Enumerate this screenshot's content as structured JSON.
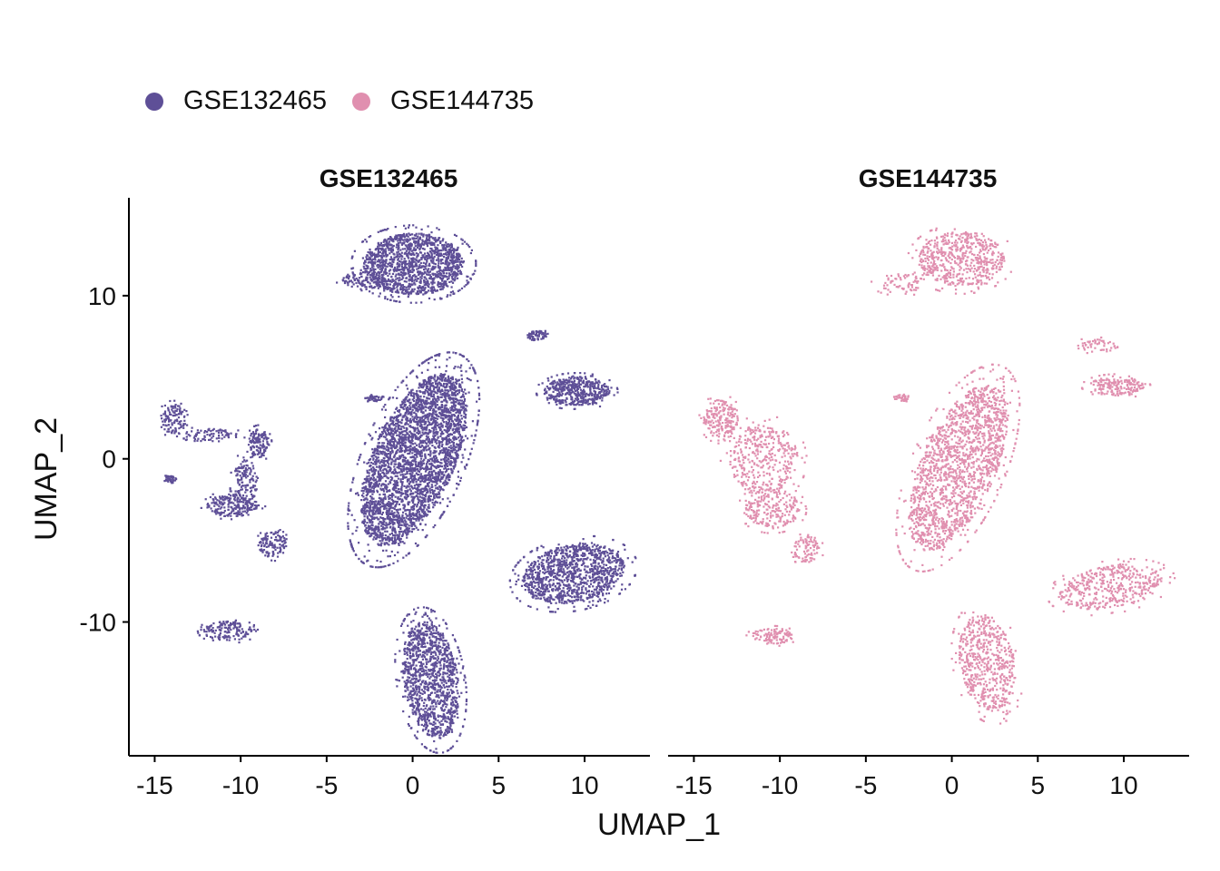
{
  "legend": {
    "items": [
      {
        "label": "GSE132465",
        "color": "#5E4F97"
      },
      {
        "label": "GSE144735",
        "color": "#E08FAF"
      }
    ],
    "placement": "top-left"
  },
  "chart_data": {
    "type": "scatter",
    "title": "",
    "xlabel": "UMAP_1",
    "ylabel": "UMAP_2",
    "xlim": [
      -16.5,
      13.8
    ],
    "ylim": [
      -18.2,
      16
    ],
    "xticks": [
      -15,
      -10,
      -5,
      0,
      5,
      10
    ],
    "yticks": [
      10,
      0,
      -10
    ],
    "xtick_labels": [
      "-15",
      "-10",
      "-5",
      "0",
      "5",
      "10"
    ],
    "ytick_labels": [
      "10",
      "0",
      "-10"
    ],
    "grid": false,
    "panels": [
      {
        "name": "GSE132465",
        "color": "#5E4F97",
        "clusters": [
          {
            "cx": 0.0,
            "cy": 12.0,
            "rx": 2.9,
            "ry": 1.9,
            "density": 1.0
          },
          {
            "cx": -3.0,
            "cy": 11.0,
            "rx": 1.2,
            "ry": 0.5,
            "density": 0.5
          },
          {
            "cx": 0.0,
            "cy": 0.0,
            "rx": 2.4,
            "ry": 5.6,
            "angle": -22,
            "density": 1.0
          },
          {
            "cx": 9.5,
            "cy": 4.2,
            "rx": 1.9,
            "ry": 0.9,
            "density": 1.0
          },
          {
            "cx": 7.2,
            "cy": 7.6,
            "rx": 0.6,
            "ry": 0.3,
            "density": 0.8
          },
          {
            "cx": 9.3,
            "cy": -7.0,
            "rx": 3.0,
            "ry": 1.8,
            "angle": 12,
            "density": 0.8
          },
          {
            "cx": 1.0,
            "cy": -13.5,
            "rx": 1.6,
            "ry": 3.6,
            "angle": 8,
            "density": 0.8
          },
          {
            "cx": -14.0,
            "cy": 2.5,
            "rx": 0.7,
            "ry": 0.9,
            "density": 0.55
          },
          {
            "cx": -12.0,
            "cy": 1.5,
            "rx": 1.8,
            "ry": 0.4,
            "density": 0.3
          },
          {
            "cx": -9.0,
            "cy": 1.0,
            "rx": 0.6,
            "ry": 0.9,
            "density": 0.7
          },
          {
            "cx": -9.8,
            "cy": -1.5,
            "rx": 0.7,
            "ry": 1.6,
            "density": 0.4
          },
          {
            "cx": -10.5,
            "cy": -2.8,
            "rx": 1.5,
            "ry": 0.7,
            "density": 0.65
          },
          {
            "cx": -8.2,
            "cy": -5.2,
            "rx": 0.8,
            "ry": 0.8,
            "density": 0.55
          },
          {
            "cx": -10.8,
            "cy": -10.5,
            "rx": 1.4,
            "ry": 0.6,
            "density": 0.6
          },
          {
            "cx": -14.2,
            "cy": -1.2,
            "rx": 0.4,
            "ry": 0.2,
            "density": 0.5
          },
          {
            "cx": -2.3,
            "cy": 3.8,
            "rx": 0.6,
            "ry": 0.2,
            "density": 0.4
          }
        ]
      },
      {
        "name": "GSE144735",
        "color": "#E08FAF",
        "clusters": [
          {
            "cx": 0.5,
            "cy": 12.3,
            "rx": 2.5,
            "ry": 1.7,
            "density": 0.5
          },
          {
            "cx": -3.0,
            "cy": 10.8,
            "rx": 1.4,
            "ry": 0.6,
            "density": 0.18
          },
          {
            "cx": 0.3,
            "cy": -0.5,
            "rx": 2.2,
            "ry": 5.4,
            "angle": -22,
            "density": 0.55
          },
          {
            "cx": 9.5,
            "cy": 4.5,
            "rx": 1.6,
            "ry": 0.6,
            "density": 0.6
          },
          {
            "cx": 8.5,
            "cy": 7.0,
            "rx": 1.3,
            "ry": 0.4,
            "density": 0.15
          },
          {
            "cx": 9.2,
            "cy": -7.8,
            "rx": 3.0,
            "ry": 1.3,
            "angle": 10,
            "density": 0.4
          },
          {
            "cx": 2.0,
            "cy": -12.5,
            "rx": 1.6,
            "ry": 3.0,
            "angle": 10,
            "density": 0.45
          },
          {
            "cx": -13.5,
            "cy": 2.5,
            "rx": 1.0,
            "ry": 1.2,
            "density": 0.55
          },
          {
            "cx": -11.0,
            "cy": 0.0,
            "rx": 2.0,
            "ry": 2.2,
            "density": 0.3
          },
          {
            "cx": -10.5,
            "cy": -3.0,
            "rx": 1.6,
            "ry": 1.2,
            "density": 0.4
          },
          {
            "cx": -8.5,
            "cy": -5.5,
            "rx": 0.8,
            "ry": 0.8,
            "density": 0.35
          },
          {
            "cx": -10.5,
            "cy": -10.8,
            "rx": 1.2,
            "ry": 0.5,
            "density": 0.5
          },
          {
            "cx": -3.0,
            "cy": 3.8,
            "rx": 0.5,
            "ry": 0.2,
            "density": 0.3
          }
        ]
      }
    ]
  }
}
